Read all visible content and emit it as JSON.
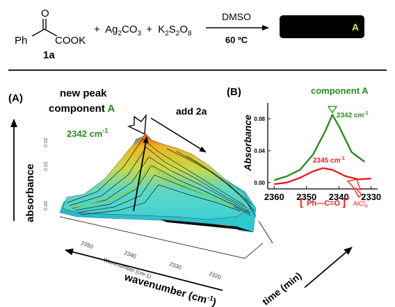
{
  "scheme": {
    "ketone_o": "O",
    "ph": "Ph",
    "cook": "COOK",
    "compound_label": "1a",
    "reagents_plus1": "+",
    "ag2co3_a": "Ag",
    "ag2co3_b": "2",
    "ag2co3_c": "CO",
    "ag2co3_d": "3",
    "reagents_plus2": "+",
    "k2s2o8_a": "K",
    "k2s2o8_b": "2",
    "k2s2o8_c": "S",
    "k2s2o8_d": "2",
    "k2s2o8_e": "O",
    "k2s2o8_f": "8",
    "solvent": "DMSO",
    "temperature": "60 ºC",
    "product_label": "A"
  },
  "panelA": {
    "label": "(A)",
    "annotation_line1": "new peak",
    "annotation_line2a": "component",
    "annotation_line2b": "A",
    "add_label": "add 2a",
    "peak_label": "2342 cm",
    "peak_sup": "-1",
    "ylabel": "absorbance",
    "xlabel": "wavenumber (cm",
    "xlabel_sup": "-1",
    "xlabel_end": ")",
    "zlabel": "time (min)",
    "inner_xticks": [
      "2350",
      "2340",
      "2330",
      "2320"
    ],
    "inner_xlabel": "Wavenumber (cm-1)",
    "inner_yticks": [
      "0.00",
      "0.01",
      "0.02"
    ]
  },
  "panelB": {
    "label": "(B)",
    "title_component": "component A",
    "ylabel": "Absorbance",
    "green_label": "2342 cm",
    "green_sup": "-1",
    "red_label": "2345 cm",
    "red_sup": "-1",
    "bracket_left": "[",
    "acylium": "Ph—C≡O",
    "plus": "+",
    "bracket_right": "]",
    "counterion": "AlCl",
    "counterion_sub": "4",
    "counterion_minus": "-"
  },
  "chart_data": {
    "type": "line",
    "xlabel": "",
    "ylabel": "Absorbance",
    "xlim": [
      2362,
      2328
    ],
    "ylim": [
      -0.008,
      0.1
    ],
    "xticks": [
      2360,
      2350,
      2340,
      2330
    ],
    "yticks": [
      0.0,
      0.04,
      0.08
    ],
    "ytick_labels": [
      "0.00",
      "0.04",
      "0.08"
    ],
    "series": [
      {
        "name": "",
        "color": "#2a8a1f",
        "x": [
          2360,
          2356,
          2352,
          2348,
          2344,
          2342,
          2340,
          2336,
          2332
        ],
        "y": [
          0.003,
          0.008,
          0.016,
          0.035,
          0.066,
          0.085,
          0.071,
          0.038,
          0.026
        ]
      },
      {
        "name": "",
        "color": "#ee1a1a",
        "x": [
          2360,
          2356,
          2352,
          2348,
          2345,
          2342,
          2338,
          2334,
          2330
        ],
        "y": [
          -0.002,
          0.0,
          0.006,
          0.014,
          0.018,
          0.016,
          0.008,
          0.004,
          0.005
        ]
      }
    ]
  }
}
